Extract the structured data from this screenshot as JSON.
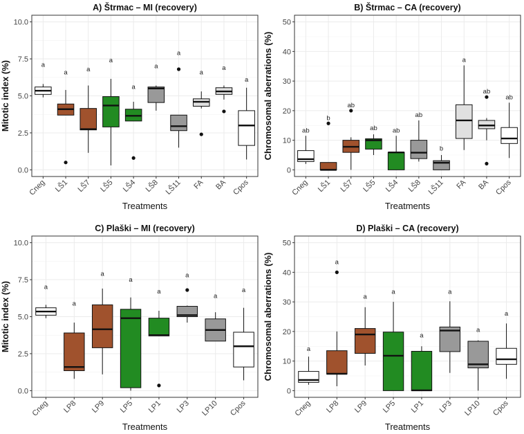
{
  "colors": {
    "control": "#ffffff",
    "brown": "#a0522d",
    "green": "#228b22",
    "gray": "#999999",
    "light": "#e0e0e0",
    "grid": "#ebebeb",
    "border": "#333333"
  },
  "chart_data": [
    {
      "type": "box",
      "title": "A) Štrmac – MI (recovery)",
      "xlabel": "Treatments",
      "ylabel": "Mitotic index (%)",
      "ylim": [
        0,
        10
      ],
      "yticks": [
        "0.0",
        "2.5",
        "5.0",
        "7.5",
        "10.0"
      ],
      "categories": [
        "Cneg",
        "LŠ1",
        "LŠ7",
        "LŠ5",
        "LŠ4",
        "LŠ8",
        "LŠ11",
        "FA",
        "BA",
        "Cpos"
      ],
      "fills": [
        "control",
        "brown",
        "brown",
        "green",
        "green",
        "gray",
        "gray",
        "light",
        "light",
        "control"
      ],
      "boxes": [
        {
          "q1": 5.1,
          "median": 5.35,
          "q3": 5.6,
          "whisker_low": 4.9,
          "whisker_high": 5.8,
          "outliers": []
        },
        {
          "q1": 3.7,
          "median": 4.1,
          "q3": 4.45,
          "whisker_low": 3.7,
          "whisker_high": 5.4,
          "outliers": [
            0.5
          ]
        },
        {
          "q1": 2.7,
          "median": 2.75,
          "q3": 4.15,
          "whisker_low": 1.15,
          "whisker_high": 5.7,
          "outliers": []
        },
        {
          "q1": 2.9,
          "median": 4.35,
          "q3": 4.95,
          "whisker_low": 0.3,
          "whisker_high": 6.15,
          "outliers": []
        },
        {
          "q1": 3.3,
          "median": 3.65,
          "q3": 4.1,
          "whisker_low": 3.3,
          "whisker_high": 4.6,
          "outliers": [
            0.8
          ]
        },
        {
          "q1": 4.55,
          "median": 5.5,
          "q3": 5.6,
          "whisker_low": 4.0,
          "whisker_high": 5.7,
          "outliers": []
        },
        {
          "q1": 2.65,
          "median": 2.95,
          "q3": 3.7,
          "whisker_low": 1.5,
          "whisker_high": 3.7,
          "outliers": [
            6.8
          ]
        },
        {
          "q1": 4.3,
          "median": 4.6,
          "q3": 4.8,
          "whisker_low": 4.15,
          "whisker_high": 5.3,
          "outliers": [
            2.4
          ]
        },
        {
          "q1": 5.1,
          "median": 5.3,
          "q3": 5.55,
          "whisker_low": 4.75,
          "whisker_high": 5.7,
          "outliers": [
            3.95
          ]
        },
        {
          "q1": 1.65,
          "median": 3.0,
          "q3": 4.0,
          "whisker_low": 0.7,
          "whisker_high": 5.55,
          "outliers": []
        }
      ],
      "sig_labels": [
        "a",
        "a",
        "a",
        "a",
        "a",
        "a",
        "a",
        "a",
        "a",
        "a"
      ],
      "sig_y": [
        7.1,
        6.6,
        6.8,
        7.4,
        5.6,
        7.0,
        7.9,
        6.6,
        6.9,
        6.1
      ]
    },
    {
      "type": "box",
      "title": "B) Štrmac – CA (recovery)",
      "xlabel": "Treatments",
      "ylabel": "Chromosomal aberrations (%)",
      "ylim": [
        0,
        50
      ],
      "yticks": [
        "0",
        "10",
        "20",
        "30",
        "40",
        "50"
      ],
      "categories": [
        "Cneg",
        "LŠ1",
        "LŠ7",
        "LŠ5",
        "LŠ4",
        "LŠ8",
        "LŠ11",
        "FA",
        "BA",
        "Cpos"
      ],
      "fills": [
        "control",
        "brown",
        "brown",
        "green",
        "green",
        "gray",
        "gray",
        "light",
        "light",
        "control"
      ],
      "boxes": [
        {
          "q1": 2.8,
          "median": 3.6,
          "q3": 6.5,
          "whisker_low": 2.0,
          "whisker_high": 11.5,
          "outliers": []
        },
        {
          "q1": 0,
          "median": 0,
          "q3": 2.5,
          "whisker_low": 0,
          "whisker_high": 2.5,
          "outliers": [
            15.7
          ]
        },
        {
          "q1": 5.9,
          "median": 7.8,
          "q3": 10.0,
          "whisker_low": 0,
          "whisker_high": 11.0,
          "outliers": [
            20.0
          ]
        },
        {
          "q1": 7.0,
          "median": 10.0,
          "q3": 10.5,
          "whisker_low": 5.0,
          "whisker_high": 12.0,
          "outliers": []
        },
        {
          "q1": 0,
          "median": 5.9,
          "q3": 5.9,
          "whisker_low": 0,
          "whisker_high": 11.5,
          "outliers": []
        },
        {
          "q1": 3.8,
          "median": 5.8,
          "q3": 10.0,
          "whisker_low": 2.8,
          "whisker_high": 16.7,
          "outliers": []
        },
        {
          "q1": 0,
          "median": 2.4,
          "q3": 3.1,
          "whisker_low": 0,
          "whisker_high": 5.0,
          "outliers": []
        },
        {
          "q1": 10.6,
          "median": 16.7,
          "q3": 22.0,
          "whisker_low": 6.7,
          "whisker_high": 35.3,
          "outliers": []
        },
        {
          "q1": 13.9,
          "median": 15.0,
          "q3": 16.7,
          "whisker_low": 10.0,
          "whisker_high": 17.5,
          "outliers": [
            24.6,
            2.1
          ]
        },
        {
          "q1": 8.9,
          "median": 10.6,
          "q3": 14.3,
          "whisker_low": 4.0,
          "whisker_high": 22.7,
          "outliers": []
        }
      ],
      "sig_labels": [
        "ab",
        "b",
        "ab",
        "ab",
        "ab",
        "ab",
        "b",
        "a",
        "ab",
        "ab"
      ],
      "sig_y": [
        13.3,
        17.5,
        21.8,
        14.1,
        13.3,
        18.6,
        7.2,
        37.2,
        26.5,
        24.5
      ]
    },
    {
      "type": "box",
      "title": "C) Plaški – MI (recovery)",
      "xlabel": "Treatments",
      "ylabel": "Mitotic index (%)",
      "ylim": [
        0,
        10
      ],
      "yticks": [
        "0.0",
        "2.5",
        "5.0",
        "7.5",
        "10.0"
      ],
      "categories": [
        "Cneg",
        "LP8",
        "LP9",
        "LP5",
        "LP1",
        "LP3",
        "LP10",
        "Cpos"
      ],
      "fills": [
        "control",
        "brown",
        "brown",
        "green",
        "green",
        "gray",
        "gray",
        "control"
      ],
      "boxes": [
        {
          "q1": 5.1,
          "median": 5.35,
          "q3": 5.6,
          "whisker_low": 4.9,
          "whisker_high": 5.8,
          "outliers": []
        },
        {
          "q1": 1.35,
          "median": 1.6,
          "q3": 3.9,
          "whisker_low": 0.8,
          "whisker_high": 4.6,
          "outliers": []
        },
        {
          "q1": 2.9,
          "median": 4.15,
          "q3": 5.8,
          "whisker_low": 1.1,
          "whisker_high": 6.9,
          "outliers": []
        },
        {
          "q1": 0.2,
          "median": 4.9,
          "q3": 5.5,
          "whisker_low": 0,
          "whisker_high": 6.3,
          "outliers": []
        },
        {
          "q1": 3.7,
          "median": 3.75,
          "q3": 4.9,
          "whisker_low": 3.7,
          "whisker_high": 5.4,
          "outliers": [
            0.35
          ]
        },
        {
          "q1": 5.0,
          "median": 5.1,
          "q3": 5.7,
          "whisker_low": 4.6,
          "whisker_high": 5.75,
          "outliers": [
            6.8
          ]
        },
        {
          "q1": 3.35,
          "median": 4.1,
          "q3": 4.85,
          "whisker_low": 3.35,
          "whisker_high": 5.3,
          "outliers": []
        },
        {
          "q1": 1.6,
          "median": 3.0,
          "q3": 3.95,
          "whisker_low": 0.7,
          "whisker_high": 5.6,
          "outliers": []
        }
      ],
      "sig_labels": [
        "a",
        "a",
        "a",
        "a",
        "a",
        "a",
        "a",
        "a"
      ],
      "sig_y": [
        7.0,
        5.9,
        7.9,
        7.5,
        6.7,
        7.8,
        6.4,
        6.8
      ]
    },
    {
      "type": "box",
      "title": "D) Plaški – CA (recovery)",
      "xlabel": "Treatments",
      "ylabel": "Chromosomal aberrations (%)",
      "ylim": [
        0,
        50
      ],
      "yticks": [
        "0",
        "10",
        "20",
        "30",
        "40",
        "50"
      ],
      "categories": [
        "Cneg",
        "LP8",
        "LP9",
        "LP5",
        "LP1",
        "LP3",
        "LP10",
        "Cpos"
      ],
      "fills": [
        "control",
        "brown",
        "brown",
        "green",
        "green",
        "gray",
        "gray",
        "control"
      ],
      "boxes": [
        {
          "q1": 2.8,
          "median": 3.6,
          "q3": 6.5,
          "whisker_low": 2.0,
          "whisker_high": 11.5,
          "outliers": []
        },
        {
          "q1": 5.6,
          "median": 5.7,
          "q3": 13.5,
          "whisker_low": 1.5,
          "whisker_high": 20.0,
          "outliers": [
            40.0
          ]
        },
        {
          "q1": 12.6,
          "median": 19.0,
          "q3": 21.0,
          "whisker_low": 8.5,
          "whisker_high": 28.2,
          "outliers": []
        },
        {
          "q1": 0,
          "median": 11.8,
          "q3": 19.8,
          "whisker_low": 0,
          "whisker_high": 30.0,
          "outliers": []
        },
        {
          "q1": 0,
          "median": 0.1,
          "q3": 13.3,
          "whisker_low": 0,
          "whisker_high": 15.0,
          "outliers": []
        },
        {
          "q1": 13.2,
          "median": 20.3,
          "q3": 21.5,
          "whisker_low": 6.0,
          "whisker_high": 30.2,
          "outliers": []
        },
        {
          "q1": 7.7,
          "median": 8.9,
          "q3": 16.7,
          "whisker_low": 0,
          "whisker_high": 17.0,
          "outliers": []
        },
        {
          "q1": 8.9,
          "median": 10.6,
          "q3": 14.3,
          "whisker_low": 4.0,
          "whisker_high": 22.7,
          "outliers": []
        }
      ],
      "sig_labels": [
        "a",
        "a",
        "a",
        "a",
        "a",
        "a",
        "a",
        "a"
      ],
      "sig_y": [
        14.1,
        43.5,
        31.8,
        33.4,
        18.7,
        33.4,
        20.5,
        26.0
      ]
    }
  ]
}
